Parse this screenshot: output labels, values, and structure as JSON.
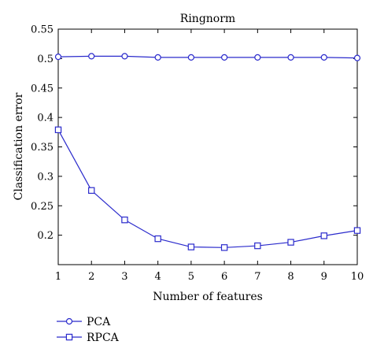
{
  "chart_data": {
    "type": "line",
    "title": "Ringnorm",
    "xlabel": "Number of features",
    "ylabel": "Classification error",
    "xlim": [
      1,
      10
    ],
    "ylim": [
      0.15,
      0.55
    ],
    "xticks": [
      "1",
      "2",
      "3",
      "4",
      "5",
      "6",
      "7",
      "8",
      "9",
      "10"
    ],
    "yticks": [
      "0.2",
      "0.25",
      "0.3",
      "0.35",
      "0.4",
      "0.45",
      "0.5",
      "0.55"
    ],
    "x": [
      1,
      2,
      3,
      4,
      5,
      6,
      7,
      8,
      9,
      10
    ],
    "series": [
      {
        "name": "PCA",
        "marker": "circle",
        "color": "#2b2bcc",
        "values": [
          0.503,
          0.504,
          0.504,
          0.502,
          0.502,
          0.502,
          0.502,
          0.502,
          0.502,
          0.501
        ]
      },
      {
        "name": "RPCA",
        "marker": "square",
        "color": "#2b2bcc",
        "values": [
          0.379,
          0.276,
          0.226,
          0.194,
          0.18,
          0.179,
          0.182,
          0.188,
          0.199,
          0.208
        ]
      }
    ],
    "grid": false,
    "legend_position": "bottom-left, below plot"
  }
}
